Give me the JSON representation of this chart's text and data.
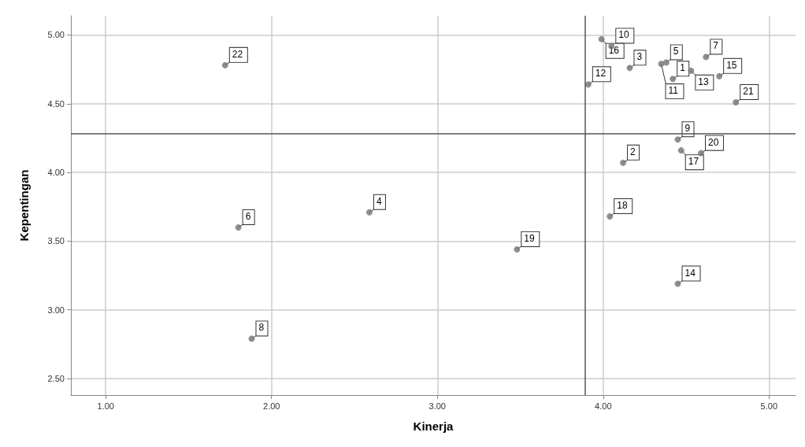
{
  "chart_data": {
    "type": "scatter",
    "xlabel": "Kinerja",
    "ylabel": "Kepentingan",
    "x": [
      4.42,
      4.12,
      4.16,
      2.59,
      4.38,
      1.8,
      4.62,
      1.88,
      4.45,
      4.05,
      4.35,
      3.91,
      4.53,
      4.45,
      4.7,
      3.99,
      4.47,
      4.04,
      3.48,
      4.59,
      4.8,
      1.72
    ],
    "values": [
      4.68,
      4.07,
      4.76,
      3.71,
      4.8,
      3.6,
      4.84,
      2.79,
      4.24,
      4.92,
      4.79,
      4.64,
      4.74,
      3.19,
      4.7,
      4.97,
      4.16,
      3.68,
      3.44,
      4.14,
      4.51,
      4.78
    ],
    "annotations": [
      {
        "text": "1",
        "x": 4.42,
        "y": 4.68
      },
      {
        "text": "2",
        "x": 4.12,
        "y": 4.07
      },
      {
        "text": "3",
        "x": 4.16,
        "y": 4.76
      },
      {
        "text": "4",
        "x": 2.59,
        "y": 3.71
      },
      {
        "text": "5",
        "x": 4.38,
        "y": 4.8
      },
      {
        "text": "6",
        "x": 1.8,
        "y": 3.6
      },
      {
        "text": "7",
        "x": 4.62,
        "y": 4.84
      },
      {
        "text": "8",
        "x": 1.88,
        "y": 2.79
      },
      {
        "text": "9",
        "x": 4.45,
        "y": 4.24
      },
      {
        "text": "10",
        "x": 4.05,
        "y": 4.92
      },
      {
        "text": "11",
        "x": 4.35,
        "y": 4.79
      },
      {
        "text": "12",
        "x": 3.91,
        "y": 4.64
      },
      {
        "text": "13",
        "x": 4.53,
        "y": 4.74
      },
      {
        "text": "14",
        "x": 4.45,
        "y": 3.19
      },
      {
        "text": "15",
        "x": 4.7,
        "y": 4.7
      },
      {
        "text": "16",
        "x": 3.99,
        "y": 4.97
      },
      {
        "text": "17",
        "x": 4.47,
        "y": 4.16
      },
      {
        "text": "18",
        "x": 4.04,
        "y": 3.68
      },
      {
        "text": "19",
        "x": 3.48,
        "y": 3.44
      },
      {
        "text": "20",
        "x": 4.59,
        "y": 4.14
      },
      {
        "text": "21",
        "x": 4.8,
        "y": 4.51
      },
      {
        "text": "22",
        "x": 1.72,
        "y": 4.78
      }
    ],
    "color": "#737373",
    "marker": "circle",
    "grid": true,
    "xlim": [
      0.79,
      5.16
    ],
    "xticks": [
      {
        "value": 1,
        "label": "1.00"
      },
      {
        "value": 2,
        "label": "2.00"
      },
      {
        "value": 3,
        "label": "3.00"
      },
      {
        "value": 4,
        "label": "4.00"
      },
      {
        "value": 5,
        "label": "5.00"
      }
    ],
    "ylim": [
      2.38,
      5.14
    ],
    "yticks": [
      {
        "value": 2.5,
        "label": "2.50"
      },
      {
        "value": 3,
        "label": "3.00"
      },
      {
        "value": 3.5,
        "label": "3.50"
      },
      {
        "value": 4,
        "label": "4.00"
      },
      {
        "value": 4.5,
        "label": "4.50"
      },
      {
        "value": 5,
        "label": "5.00"
      }
    ],
    "ref_lines": [
      {
        "axis": "x",
        "value": 3.89,
        "color": "#555555"
      },
      {
        "axis": "y",
        "value": 4.28,
        "color": "#555555"
      }
    ]
  }
}
